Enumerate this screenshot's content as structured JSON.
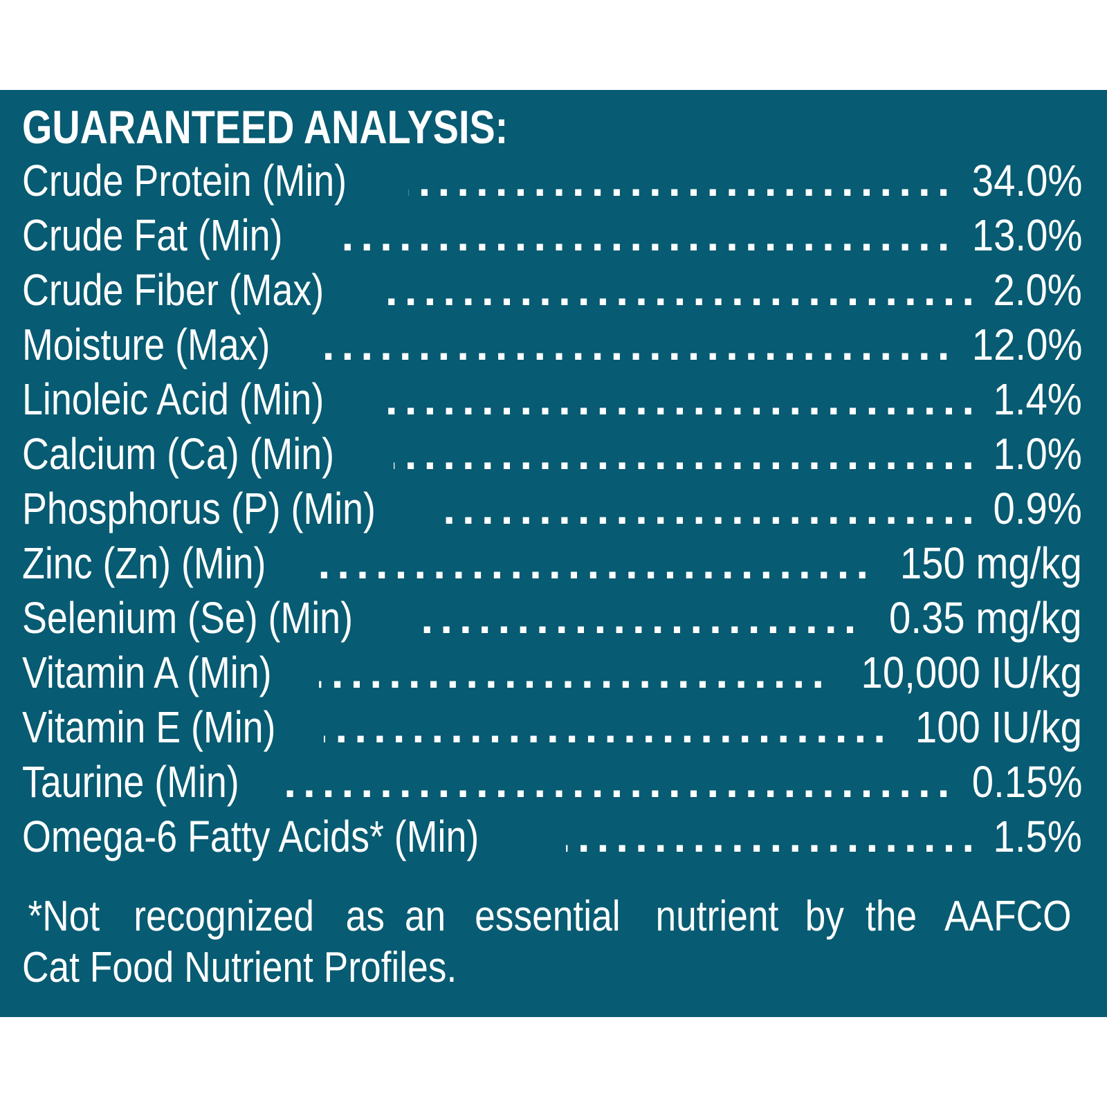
{
  "heading": "GUARANTEED ANALYSIS:",
  "rows": [
    {
      "label": "Crude Protein (Min)",
      "value": "34.0%"
    },
    {
      "label": "Crude Fat (Min)",
      "value": "13.0%"
    },
    {
      "label": "Crude Fiber (Max)",
      "value": "2.0%"
    },
    {
      "label": "Moisture (Max)",
      "value": "12.0%"
    },
    {
      "label": "Linoleic Acid (Min)",
      "value": "1.4%"
    },
    {
      "label": "Calcium (Ca) (Min)",
      "value": "1.0%"
    },
    {
      "label": "Phosphorus (P) (Min)",
      "value": "0.9%"
    },
    {
      "label": "Zinc (Zn) (Min)",
      "value": "150 mg/kg"
    },
    {
      "label": "Selenium (Se) (Min)",
      "value": "0.35 mg/kg"
    },
    {
      "label": "Vitamin A (Min)",
      "value": "10,000 IU/kg"
    },
    {
      "label": "Vitamin E (Min)",
      "value": "100 IU/kg"
    },
    {
      "label": "Taurine (Min)",
      "value": "0.15%"
    },
    {
      "label": "Omega-6 Fatty Acids* (Min)",
      "value": "1.5%"
    }
  ],
  "footnote": {
    "line1_words": [
      "*Not",
      "recognized",
      "as",
      "an",
      "essential",
      "nutrient",
      "by",
      "the",
      "AAFCO"
    ],
    "line2": "Cat Food Nutrient Profiles."
  },
  "colors": {
    "panel_background": "#075b72",
    "text": "#ffffff",
    "page_background": "#ffffff"
  }
}
